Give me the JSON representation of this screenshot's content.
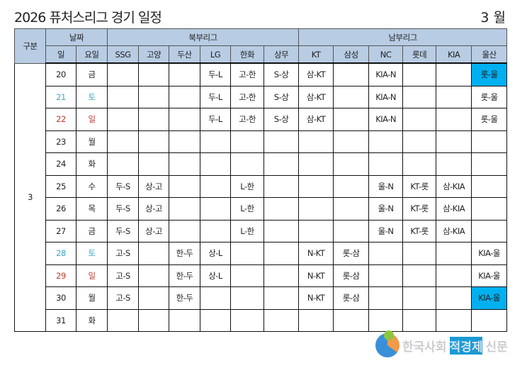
{
  "title": "2026 퓨처스리그 경기 일정",
  "month": "3 월",
  "headers": {
    "group": "구분",
    "date": "날짜",
    "north": "북부리그",
    "south": "남부리그",
    "day": "일",
    "weekday": "요일",
    "teams": [
      "SSG",
      "고양",
      "두산",
      "LG",
      "한화",
      "상무",
      "KT",
      "삼성",
      "NC",
      "롯데",
      "KIA",
      "울산"
    ]
  },
  "group_value": "3",
  "rows": [
    {
      "day": "20",
      "wd": "금",
      "type": "",
      "cells": [
        "",
        "",
        "",
        "두-L",
        "고-한",
        "S-상",
        "삼-KT",
        "",
        "KIA-N",
        "",
        "",
        "롯-울"
      ],
      "hl": [
        11
      ]
    },
    {
      "day": "21",
      "wd": "토",
      "type": "sat",
      "cells": [
        "",
        "",
        "",
        "두-L",
        "고-한",
        "S-상",
        "삼-KT",
        "",
        "KIA-N",
        "",
        "",
        "롯-울"
      ],
      "hl": []
    },
    {
      "day": "22",
      "wd": "일",
      "type": "sun",
      "cells": [
        "",
        "",
        "",
        "두-L",
        "고-한",
        "S-상",
        "삼-KT",
        "",
        "KIA-N",
        "",
        "",
        "롯-울"
      ],
      "hl": []
    },
    {
      "day": "23",
      "wd": "월",
      "type": "",
      "cells": [
        "",
        "",
        "",
        "",
        "",
        "",
        "",
        "",
        "",
        "",
        "",
        ""
      ],
      "hl": []
    },
    {
      "day": "24",
      "wd": "화",
      "type": "",
      "cells": [
        "",
        "",
        "",
        "",
        "",
        "",
        "",
        "",
        "",
        "",
        "",
        ""
      ],
      "hl": []
    },
    {
      "day": "25",
      "wd": "수",
      "type": "",
      "cells": [
        "두-S",
        "상-고",
        "",
        "",
        "L-한",
        "",
        "",
        "",
        "울-N",
        "KT-롯",
        "삼-KIA",
        ""
      ],
      "hl": []
    },
    {
      "day": "26",
      "wd": "목",
      "type": "",
      "cells": [
        "두-S",
        "상-고",
        "",
        "",
        "L-한",
        "",
        "",
        "",
        "울-N",
        "KT-롯",
        "삼-KIA",
        ""
      ],
      "hl": []
    },
    {
      "day": "27",
      "wd": "금",
      "type": "",
      "cells": [
        "두-S",
        "상-고",
        "",
        "",
        "L-한",
        "",
        "",
        "",
        "울-N",
        "KT-롯",
        "삼-KIA",
        ""
      ],
      "hl": []
    },
    {
      "day": "28",
      "wd": "토",
      "type": "sat",
      "cells": [
        "고-S",
        "",
        "한-두",
        "상-L",
        "",
        "",
        "N-KT",
        "롯-삼",
        "",
        "",
        "",
        "KIA-울"
      ],
      "hl": []
    },
    {
      "day": "29",
      "wd": "일",
      "type": "sun",
      "cells": [
        "고-S",
        "",
        "한-두",
        "상-L",
        "",
        "",
        "N-KT",
        "롯-삼",
        "",
        "",
        "",
        "KIA-울"
      ],
      "hl": []
    },
    {
      "day": "30",
      "wd": "월",
      "type": "",
      "cells": [
        "고-S",
        "",
        "한-두",
        "",
        "",
        "",
        "N-KT",
        "롯-삼",
        "",
        "",
        "",
        "KIA-울"
      ],
      "hl": [
        11
      ]
    },
    {
      "day": "31",
      "wd": "화",
      "type": "",
      "cells": [
        "",
        "",
        "",
        "",
        "",
        "",
        "",
        "",
        "",
        "",
        "",
        ""
      ],
      "hl": []
    }
  ],
  "colors": {
    "header": "#b8cce4",
    "highlight": "#00b0f0",
    "saturday": "#3aa8c8",
    "sunday": "#c0392b"
  },
  "watermark": {
    "part1": "한국사회",
    "part2": "적경제",
    "part3": "신문"
  }
}
